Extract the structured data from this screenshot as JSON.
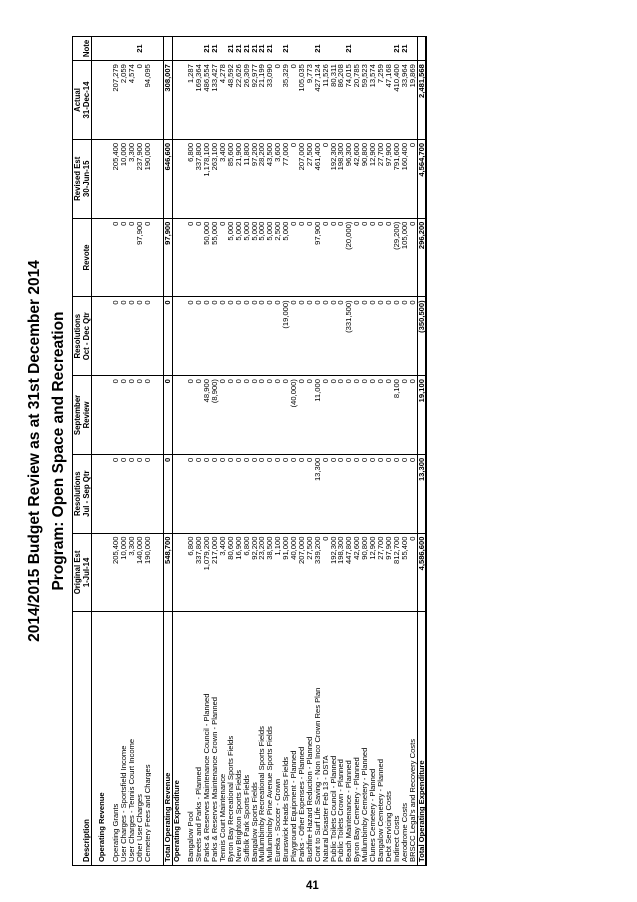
{
  "title": "2014/2015 Budget Review as at 31st December 2014",
  "subtitle": "Program: Open Space and Recreation",
  "page_number": "41",
  "columns": {
    "description": "Description",
    "original": [
      "Original Est",
      "1-Jul-14"
    ],
    "res_q1": [
      "Resolutions",
      "Jul - Sep Qtr"
    ],
    "sept": [
      "September",
      "Review"
    ],
    "res_q2": [
      "Resolutions",
      "Oct - Dec Qtr"
    ],
    "revote": [
      "",
      "Revote"
    ],
    "revised": [
      "Revised Est",
      "30-Jun-15"
    ],
    "actual": [
      "Actual",
      "31-Dec-14"
    ],
    "note": [
      "",
      "Note"
    ]
  },
  "sections": {
    "revenue_heading": "Operating Revenue",
    "expenditure_heading": "Operating Expenditure"
  },
  "revenue_rows": [
    [
      "Operating Grants",
      "205,400",
      "0",
      "0",
      "0",
      "0",
      "205,400",
      "207,279",
      ""
    ],
    [
      "User Charges - Sportsfield Income",
      "10,000",
      "0",
      "0",
      "0",
      "0",
      "10,000",
      "2,059",
      ""
    ],
    [
      "User Charges - Tennis Court Income",
      "3,300",
      "0",
      "0",
      "0",
      "0",
      "3,300",
      "4,574",
      ""
    ],
    [
      "Other User Charges",
      "140,000",
      "0",
      "0",
      "0",
      "97,900",
      "237,900",
      "0",
      "21"
    ],
    [
      "Cemetery Fees and Charges",
      "190,000",
      "0",
      "0",
      "0",
      "0",
      "190,000",
      "94,095",
      ""
    ]
  ],
  "revenue_total": [
    "Total Operating Revenue",
    "548,700",
    "0",
    "0",
    "0",
    "97,900",
    "646,600",
    "308,007",
    ""
  ],
  "expenditure_rows": [
    [
      "Bangalow Pool",
      "6,800",
      "0",
      "0",
      "0",
      "0",
      "6,800",
      "1,287",
      ""
    ],
    [
      "Streets and Parks - Planned",
      "337,800",
      "0",
      "0",
      "0",
      "0",
      "337,800",
      "169,364",
      ""
    ],
    [
      "Parks & Reserves Maintenance Council - Planned",
      "1,079,200",
      "0",
      "48,900",
      "0",
      "50,000",
      "1,178,100",
      "486,554",
      "21"
    ],
    [
      "Parks & Reserves Maintenance Crown - Planned",
      "217,000",
      "0",
      "(8,900)",
      "0",
      "55,000",
      "263,100",
      "133,427",
      "21"
    ],
    [
      "Tennis Court Maintenance",
      "3,400",
      "0",
      "0",
      "0",
      "0",
      "3,400",
      "4,278",
      ""
    ],
    [
      "Byron Bay Recreational Sports Fields",
      "80,600",
      "0",
      "0",
      "0",
      "5,000",
      "85,600",
      "48,592",
      "21"
    ],
    [
      "New Brighton Sports Fields",
      "16,900",
      "0",
      "0",
      "0",
      "5,000",
      "21,900",
      "22,626",
      "21"
    ],
    [
      "Suffolk Park Sports Fields",
      "6,800",
      "0",
      "0",
      "0",
      "5,000",
      "11,800",
      "26,309",
      "21"
    ],
    [
      "Bangalow Sports Fields",
      "92,200",
      "0",
      "0",
      "0",
      "5,000",
      "97,200",
      "92,977",
      "21"
    ],
    [
      "Mullumbimby Recreational Sports Fields",
      "23,200",
      "0",
      "0",
      "0",
      "5,000",
      "28,200",
      "21,199",
      "21"
    ],
    [
      "Mullumbimby Pine Avenue Sports Fields",
      "38,500",
      "0",
      "0",
      "0",
      "5,000",
      "43,500",
      "33,090",
      "21"
    ],
    [
      "Eureka - Soccer - Crown",
      "1,100",
      "0",
      "0",
      "0",
      "2,500",
      "3,600",
      "0",
      ""
    ],
    [
      "Brunswick Heads Sports Fields",
      "91,000",
      "0",
      "0",
      "(19,000)",
      "5,000",
      "77,000",
      "35,329",
      "21"
    ],
    [
      "Playground Equipment - Planned",
      "40,000",
      "0",
      "(40,000)",
      "0",
      "0",
      "0",
      "0",
      ""
    ],
    [
      "Parks - Other Expenses - Planned",
      "207,000",
      "0",
      "0",
      "0",
      "0",
      "207,000",
      "105,035",
      ""
    ],
    [
      "Bushfire Hazard Reduction - Planned",
      "27,500",
      "0",
      "0",
      "0",
      "0",
      "27,500",
      "9,773",
      ""
    ],
    [
      "Cont to Surf Life Saving - Non Inco Crown Res Plan",
      "339,200",
      "13,300",
      "11,000",
      "0",
      "97,900",
      "461,400",
      "427,124",
      "21"
    ],
    [
      "Natural Disaster Feb 13 - DSTA",
      "0",
      "0",
      "0",
      "0",
      "0",
      "0",
      "11,526",
      ""
    ],
    [
      "Public Toilets Council - Planned",
      "192,300",
      "0",
      "0",
      "0",
      "0",
      "192,300",
      "80,311",
      ""
    ],
    [
      "Public Toilets Crown - Planned",
      "198,300",
      "0",
      "0",
      "0",
      "0",
      "198,300",
      "86,208",
      ""
    ],
    [
      "Beach Maintenance - Planned",
      "447,800",
      "0",
      "0",
      "(331,500)",
      "(20,000)",
      "96,300",
      "74,015",
      "21"
    ],
    [
      "Byron Bay Cemetery - Planned",
      "42,600",
      "0",
      "0",
      "0",
      "0",
      "42,600",
      "20,785",
      ""
    ],
    [
      "Mullumbimby Cemetery - Planned",
      "90,800",
      "0",
      "0",
      "0",
      "0",
      "90,800",
      "59,523",
      ""
    ],
    [
      "Clunes Cemetery - Planned",
      "12,900",
      "0",
      "0",
      "0",
      "0",
      "12,900",
      "13,574",
      ""
    ],
    [
      "Bangalow Cemetery - Planned",
      "27,700",
      "0",
      "0",
      "0",
      "0",
      "27,700",
      "7,259",
      ""
    ],
    [
      "Debt Servicing Costs",
      "97,900",
      "0",
      "0",
      "0",
      "0",
      "97,900",
      "47,168",
      ""
    ],
    [
      "Indirect Costs",
      "812,700",
      "0",
      "8,100",
      "0",
      "(29,200)",
      "791,600",
      "410,400",
      "21"
    ],
    [
      "Aerodrome Costs",
      "55,400",
      "0",
      "0",
      "0",
      "105,000",
      "160,400",
      "33,964",
      "21"
    ],
    [
      "BRSCC Legal's and Recovery Costs",
      "0",
      "0",
      "0",
      "0",
      "0",
      "0",
      "19,869",
      ""
    ]
  ],
  "expenditure_total": [
    "Total Operating Expenditure",
    "4,586,600",
    "13,300",
    "19,100",
    "(350,500)",
    "296,200",
    "4,564,700",
    "2,481,568",
    ""
  ]
}
